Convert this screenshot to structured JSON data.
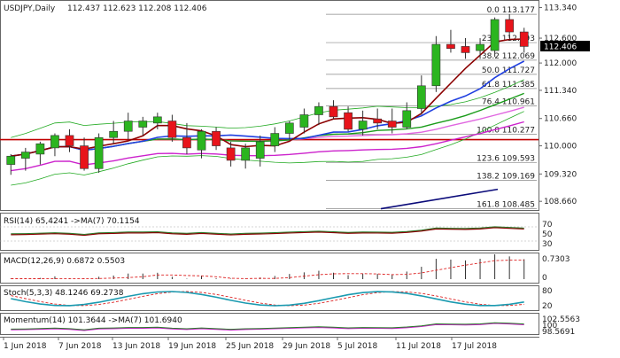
{
  "header": {
    "symbol": "USDJPY,Daily",
    "ohlc": "112.437 112.623 112.208 112.406"
  },
  "price_axis": {
    "ticks": [
      "113.340",
      "112.600",
      "112.000",
      "111.340",
      "110.660",
      "110.000",
      "109.320",
      "108.660"
    ],
    "current_price": "112.406"
  },
  "x_axis": {
    "labels": [
      "1 Jun 2018",
      "7 Jun 2018",
      "13 Jun 2018",
      "19 Jun 2018",
      "25 Jun 2018",
      "29 Jun 2018",
      "5 Jul 2018",
      "11 Jul 2018",
      "17 Jul 2018"
    ]
  },
  "fib_levels": [
    {
      "label": "0.0 113.177",
      "value": 113.177
    },
    {
      "label": "23.6 112.493",
      "value": 112.493
    },
    {
      "label": "38.2 112.069",
      "value": 112.069
    },
    {
      "label": "50.0 111.727",
      "value": 111.727
    },
    {
      "label": "61.8 111.385",
      "value": 111.385
    },
    {
      "label": "76.4 110.961",
      "value": 110.961
    },
    {
      "label": "100.0 110.277",
      "value": 110.277
    },
    {
      "label": "123.6 109.593",
      "value": 109.593
    },
    {
      "label": "138.2 109.169",
      "value": 109.169
    },
    {
      "label": "161.8 108.485",
      "value": 108.485
    }
  ],
  "indicators": {
    "rsi": {
      "title": "RSI(14) 65,4241 ->MA(7) 70.1154",
      "ticks": [
        "70",
        "50",
        "30"
      ]
    },
    "macd": {
      "title": "MACD(12,26,9) 0.6872 0.5503",
      "ticks": [
        "0.7303",
        "0"
      ]
    },
    "stoch": {
      "title": "Stoch(5,3,3) 48.1246 69.2738",
      "ticks": [
        "80",
        "20"
      ]
    },
    "momentum": {
      "title": "Momentum(14) 101.3644 ->MA(7) 101.6940",
      "ticks": [
        "102.5563",
        "100",
        "98.5691"
      ]
    }
  },
  "colors": {
    "bull": "#2bb51f",
    "bear": "#e8141b",
    "ma_fast": "#8b0000",
    "ma_blue": "#1f3fe0",
    "ma_green": "#1a9c1a",
    "ma_pink": "#e066e0",
    "ma_magenta": "#cc22cc",
    "support_line": "#c00000",
    "bollinger": "#22aa22",
    "navy": "#0b0b7a"
  },
  "chart_data": {
    "type": "candlestick",
    "title": "USDJPY,Daily",
    "dates": [
      "1 Jun 2018",
      "4 Jun",
      "5 Jun",
      "6 Jun",
      "7 Jun",
      "8 Jun",
      "11 Jun",
      "12 Jun",
      "13 Jun",
      "14 Jun",
      "15 Jun",
      "18 Jun",
      "19 Jun",
      "20 Jun",
      "21 Jun",
      "22 Jun",
      "25 Jun",
      "26 Jun",
      "27 Jun",
      "28 Jun",
      "29 Jun",
      "2 Jul",
      "3 Jul",
      "4 Jul",
      "5 Jul",
      "6 Jul",
      "9 Jul",
      "10 Jul",
      "11 Jul",
      "12 Jul",
      "13 Jul",
      "16 Jul",
      "17 Jul",
      "18 Jul",
      "19 Jul",
      "20 Jul"
    ],
    "open": [
      109.55,
      109.7,
      109.8,
      109.95,
      110.25,
      110.0,
      109.45,
      110.2,
      110.35,
      110.45,
      110.55,
      110.6,
      110.2,
      109.9,
      110.35,
      109.95,
      109.65,
      109.7,
      110.0,
      110.3,
      110.45,
      110.75,
      110.95,
      110.8,
      110.4,
      110.65,
      110.6,
      110.45,
      110.9,
      111.45,
      112.45,
      112.4,
      112.3,
      112.3,
      113.05,
      112.75
    ],
    "high": [
      109.8,
      109.95,
      110.1,
      110.3,
      110.4,
      110.2,
      110.3,
      110.6,
      110.8,
      110.7,
      110.8,
      110.75,
      110.55,
      110.4,
      110.45,
      110.1,
      110.05,
      110.25,
      110.45,
      110.6,
      110.9,
      111.05,
      111.1,
      110.95,
      110.85,
      110.9,
      110.9,
      111.05,
      111.7,
      112.65,
      112.8,
      112.6,
      112.6,
      113.1,
      113.18,
      112.85
    ],
    "low": [
      109.3,
      109.4,
      109.55,
      109.75,
      109.85,
      109.4,
      109.35,
      110.05,
      110.15,
      110.25,
      110.4,
      110.1,
      109.8,
      109.7,
      109.9,
      109.5,
      109.45,
      109.5,
      109.85,
      110.15,
      110.3,
      110.5,
      110.65,
      110.35,
      110.25,
      110.4,
      110.3,
      110.4,
      110.75,
      111.3,
      112.25,
      112.1,
      112.1,
      112.15,
      112.6,
      112.25
    ],
    "close": [
      109.75,
      109.85,
      110.05,
      110.25,
      110.0,
      109.45,
      110.2,
      110.35,
      110.6,
      110.6,
      110.7,
      110.2,
      109.95,
      110.35,
      110.0,
      109.65,
      109.95,
      110.1,
      110.3,
      110.55,
      110.75,
      110.95,
      110.7,
      110.4,
      110.6,
      110.55,
      110.45,
      110.85,
      111.45,
      112.45,
      112.35,
      112.25,
      112.45,
      113.05,
      112.75,
      112.4
    ],
    "ylim": [
      108.45,
      113.5
    ],
    "horizontal_lines": [
      {
        "name": "support",
        "value": 110.15
      }
    ]
  }
}
